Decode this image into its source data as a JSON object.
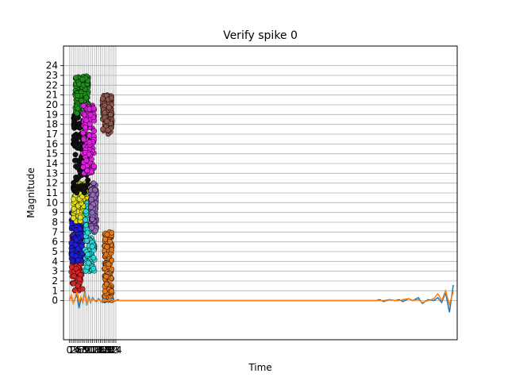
{
  "chart_data": {
    "type": "scatter",
    "title": "Verify spike 0",
    "xlabel": "Time",
    "ylabel": "Magnitude",
    "xlim": [
      -3,
      200
    ],
    "ylim": [
      -4,
      26
    ],
    "grid": true,
    "x_ticks": [
      0,
      1,
      2,
      3,
      4,
      5,
      6,
      7,
      8,
      9,
      10,
      11,
      12,
      13,
      14,
      15,
      16,
      17,
      18,
      19,
      20,
      21,
      22,
      23,
      24
    ],
    "x_tick_labels": [
      "0",
      "1",
      "2",
      "3",
      "4",
      "5",
      "6",
      "7",
      "8",
      "9",
      "10",
      "11",
      "12",
      "13",
      "14",
      "15",
      "16",
      "17",
      "18",
      "19",
      "20",
      "21",
      "22",
      "23",
      "24"
    ],
    "y_ticks": [
      0,
      1,
      2,
      3,
      4,
      5,
      6,
      7,
      8,
      9,
      10,
      11,
      12,
      13,
      14,
      15,
      16,
      17,
      18,
      19,
      20,
      21,
      22,
      23,
      24
    ],
    "y_tick_labels": [
      "0",
      "1",
      "2",
      "3",
      "4",
      "5",
      "6",
      "7",
      "8",
      "9",
      "10",
      "11",
      "12",
      "13",
      "14",
      "15",
      "16",
      "17",
      "18",
      "19",
      "20",
      "21",
      "22",
      "23",
      "24"
    ],
    "clusters": [
      {
        "color": "#d62728",
        "x": [
          1,
          7
        ],
        "y": [
          1,
          7
        ]
      },
      {
        "color": "#1f1fd6",
        "x": [
          1,
          7
        ],
        "y": [
          4,
          9
        ]
      },
      {
        "color": "#e0e020",
        "x": [
          2,
          9
        ],
        "y": [
          8,
          12
        ]
      },
      {
        "color": "#111111",
        "x": [
          2,
          10
        ],
        "y": [
          11,
          20
        ]
      },
      {
        "color": "#1f8f1f",
        "x": [
          3,
          10
        ],
        "y": [
          19,
          23
        ]
      },
      {
        "color": "#2ad8d8",
        "x": [
          8,
          13
        ],
        "y": [
          3,
          10
        ]
      },
      {
        "color": "#e020e0",
        "x": [
          7,
          13
        ],
        "y": [
          13,
          20
        ]
      },
      {
        "color": "#9467bd",
        "x": [
          11,
          14
        ],
        "y": [
          7,
          12
        ]
      },
      {
        "color": "#e07820",
        "x": [
          18,
          22
        ],
        "y": [
          0,
          7
        ]
      },
      {
        "color": "#8c564b",
        "x": [
          17,
          22
        ],
        "y": [
          17,
          21
        ]
      }
    ],
    "series": [
      {
        "color": "#1f77b4",
        "x": [
          0,
          1,
          2,
          3,
          4,
          5,
          6,
          7,
          8,
          9,
          10,
          11,
          12,
          13,
          14,
          15,
          16,
          17,
          18,
          19,
          20,
          21,
          22,
          23,
          24,
          25,
          26,
          28,
          30,
          35,
          40,
          50,
          60,
          70,
          80,
          90,
          100,
          110,
          120,
          130,
          140,
          150,
          155,
          158,
          160,
          162,
          165,
          168,
          170,
          172,
          175,
          177,
          180,
          182,
          185,
          188,
          190,
          192,
          194,
          196,
          198
        ],
        "values": [
          0.1,
          0.4,
          -0.2,
          0.2,
          0.6,
          -0.8,
          0.3,
          -0.2,
          1.0,
          -0.5,
          0.4,
          -0.2,
          0.3,
          0.0,
          -0.1,
          0.2,
          0.0,
          -0.2,
          0.2,
          0.1,
          -0.1,
          0.1,
          0.3,
          -0.1,
          0.0,
          0.1,
          0.0,
          0.0,
          0.0,
          0.0,
          0.0,
          0.0,
          0.0,
          0.0,
          0.0,
          0.0,
          0.0,
          0.0,
          0.0,
          0.0,
          0.0,
          0.0,
          0.0,
          0.0,
          0.1,
          -0.1,
          0.1,
          0.0,
          0.1,
          -0.1,
          0.2,
          0.0,
          0.3,
          -0.3,
          0.1,
          0.0,
          0.3,
          -0.2,
          0.8,
          -1.2,
          1.6
        ]
      },
      {
        "color": "#ff7f0e",
        "x": [
          0,
          1,
          2,
          3,
          4,
          5,
          6,
          7,
          8,
          9,
          10,
          11,
          12,
          13,
          14,
          15,
          16,
          17,
          18,
          19,
          20,
          21,
          22,
          23,
          24,
          25,
          26,
          28,
          30,
          35,
          40,
          50,
          60,
          70,
          80,
          90,
          100,
          110,
          120,
          130,
          140,
          150,
          155,
          158,
          160,
          162,
          165,
          168,
          170,
          172,
          175,
          177,
          180,
          182,
          185,
          188,
          190,
          192,
          194,
          196,
          198
        ],
        "values": [
          0.0,
          0.6,
          -0.3,
          0.3,
          0.9,
          -0.2,
          0.4,
          -0.1,
          0.8,
          -0.3,
          0.2,
          -0.1,
          0.2,
          0.0,
          0.0,
          0.1,
          0.0,
          -0.1,
          0.1,
          0.0,
          0.0,
          0.1,
          0.1,
          0.0,
          0.0,
          0.0,
          0.0,
          0.0,
          0.0,
          0.0,
          0.0,
          0.0,
          0.0,
          0.0,
          0.0,
          0.0,
          0.0,
          0.0,
          0.0,
          0.0,
          0.0,
          0.0,
          0.0,
          0.0,
          0.0,
          0.0,
          0.1,
          0.0,
          0.0,
          0.1,
          0.2,
          0.0,
          0.1,
          -0.2,
          0.0,
          0.2,
          0.7,
          0.0,
          1.0,
          -0.4,
          0.9
        ]
      }
    ]
  }
}
